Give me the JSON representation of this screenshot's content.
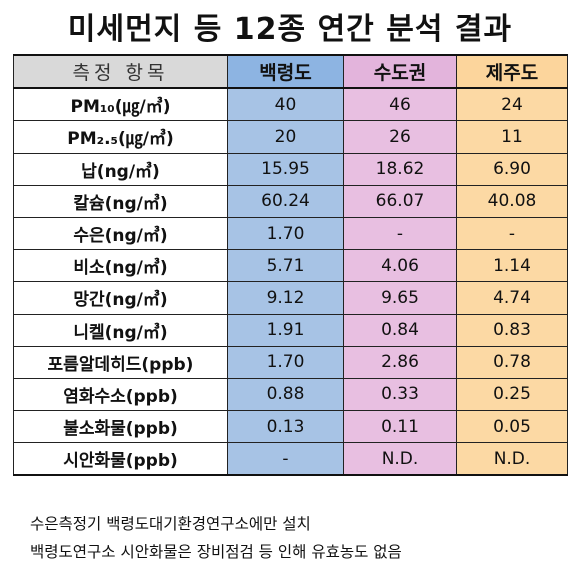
{
  "title": "미세먼지 등 12종 연간 분석 결과",
  "table": {
    "headers": [
      "측정 항목",
      "백령도",
      "수도권",
      "제주도"
    ],
    "rows": [
      {
        "item": "PM₁₀(㎍/㎥)",
        "values": [
          "40",
          "46",
          "24"
        ]
      },
      {
        "item": "PM₂.₅(㎍/㎥)",
        "values": [
          "20",
          "26",
          "11"
        ]
      },
      {
        "item": "납(ng/㎥)",
        "values": [
          "15.95",
          "18.62",
          "6.90"
        ]
      },
      {
        "item": "칼슘(ng/㎥)",
        "values": [
          "60.24",
          "66.07",
          "40.08"
        ]
      },
      {
        "item": "수은(ng/㎥)",
        "values": [
          "1.70",
          "-",
          "-"
        ]
      },
      {
        "item": "비소(ng/㎥)",
        "values": [
          "5.71",
          "4.06",
          "1.14"
        ]
      },
      {
        "item": "망간(ng/㎥)",
        "values": [
          "9.12",
          "9.65",
          "4.74"
        ]
      },
      {
        "item": "니켈(ng/㎥)",
        "values": [
          "1.91",
          "0.84",
          "0.83"
        ]
      },
      {
        "item": "포름알데히드(ppb)",
        "values": [
          "1.70",
          "2.86",
          "0.78"
        ]
      },
      {
        "item": "염화수소(ppb)",
        "values": [
          "0.88",
          "0.33",
          "0.25"
        ]
      },
      {
        "item": "불소화물(ppb)",
        "values": [
          "0.13",
          "0.11",
          "0.05"
        ]
      },
      {
        "item": "시안화물(ppb)",
        "values": [
          "-",
          "N.D.",
          "N.D."
        ]
      }
    ]
  },
  "notes": [
    "수은측정기 백령도대기환경연구소에만 설치",
    "백령도연구소 시안화물은 장비점검 등 인해 유효농도 없음"
  ],
  "colors": {
    "header_item": "#d9d9d9",
    "baengnyeong": "#8db4e2",
    "seoul_metro": "#e3b4dc",
    "jeju": "#fcd59c"
  }
}
